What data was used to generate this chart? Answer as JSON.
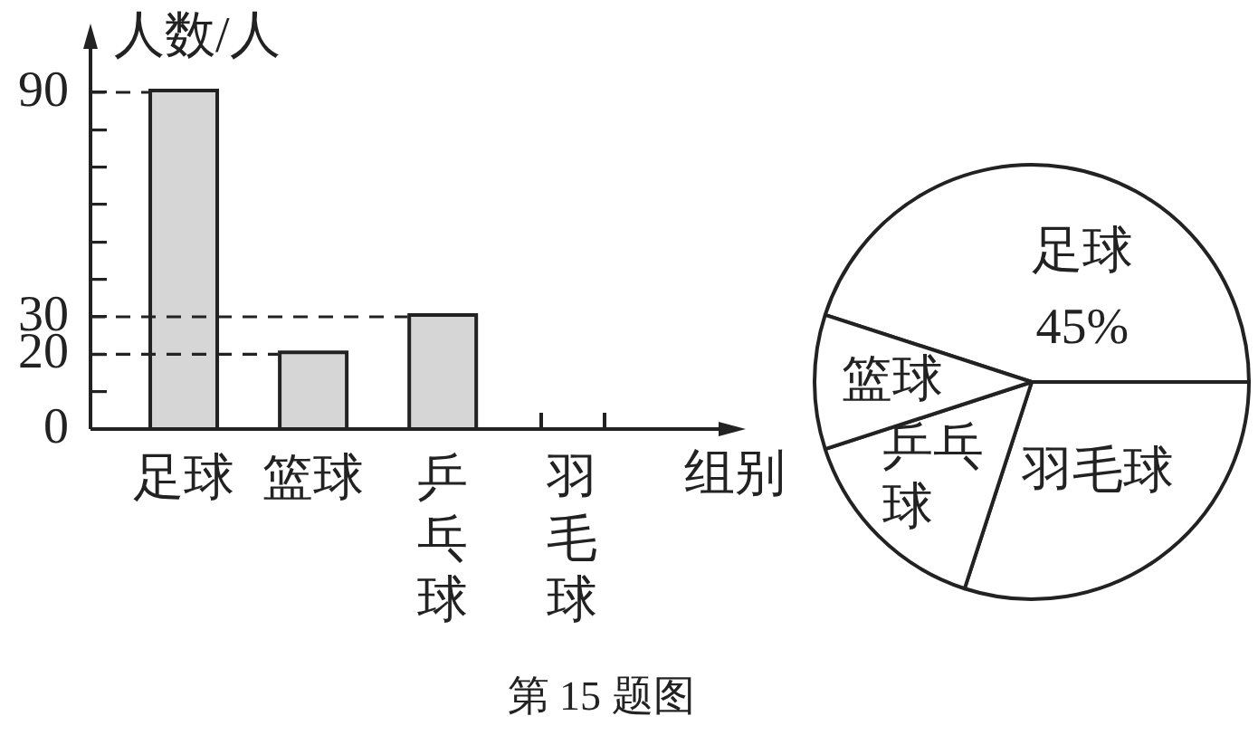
{
  "chart_data": [
    {
      "type": "bar",
      "ylabel": "人数/人",
      "xlabel": "组别",
      "categories": [
        "足球",
        "篮球",
        "乒乓球",
        "羽毛球"
      ],
      "values": [
        90,
        20,
        30,
        null
      ],
      "color": "#d6d6d6",
      "ylim": [
        0,
        105
      ],
      "yticks": [
        0,
        {
          "value": 10,
          "label": null
        },
        20,
        30,
        {
          "value": 40,
          "label": null
        },
        {
          "value": 50,
          "label": null
        },
        {
          "value": 60,
          "label": null
        },
        {
          "value": 70,
          "label": null
        },
        {
          "value": 80,
          "label": null
        },
        90
      ],
      "ref_lines": [
        {
          "axis": "y",
          "value": 90,
          "line_style": "dashed"
        },
        {
          "axis": "y",
          "value": 30,
          "line_style": "dashed"
        },
        {
          "axis": "y",
          "value": 20,
          "line_style": "dashed"
        }
      ],
      "annotations": [
        "第 15 题图"
      ]
    },
    {
      "type": "pie",
      "categories": [
        "足球",
        "羽毛球",
        "乒乓球",
        "篮球"
      ],
      "values": [
        45,
        30,
        15,
        10
      ],
      "colors": [
        "#ffffff",
        "#ffffff",
        "#ffffff",
        "#ffffff"
      ],
      "value_labels": [
        "45%",
        null,
        null,
        null
      ]
    }
  ]
}
